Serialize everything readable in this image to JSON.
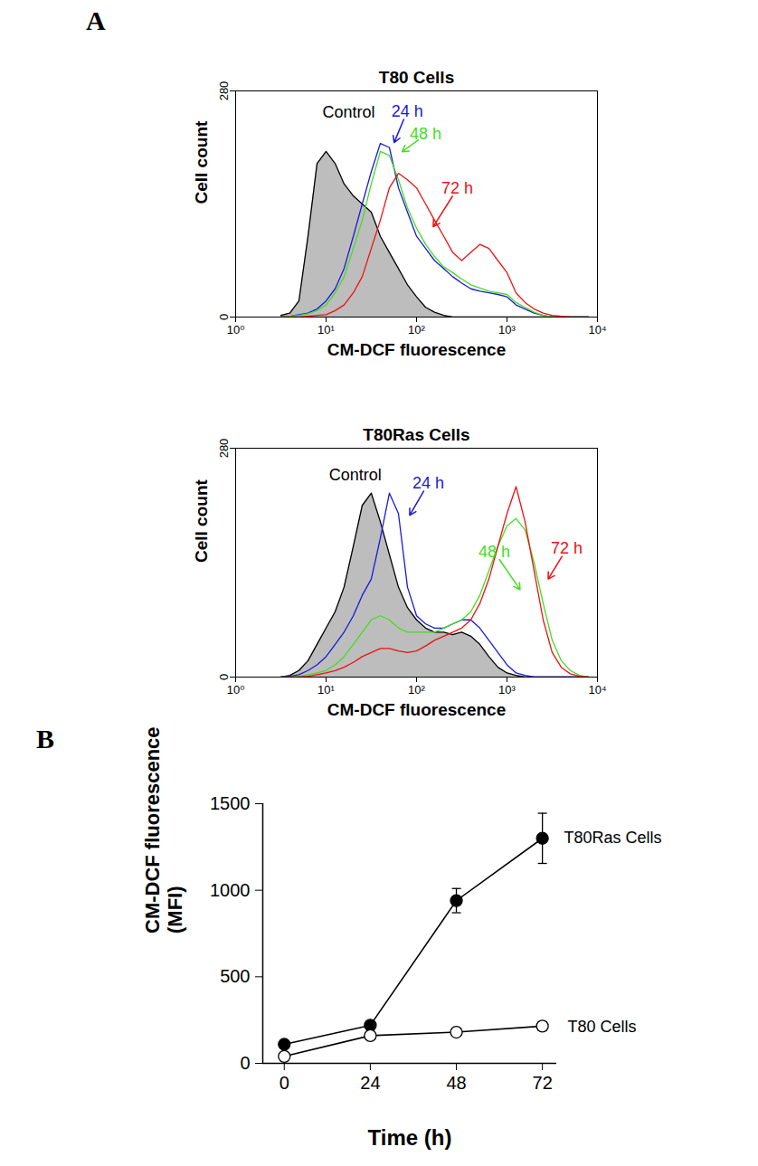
{
  "chart_data": [
    {
      "type": "line",
      "panel_label": "A",
      "title": "T80 Cells",
      "x_label": "CM-DCF fluorescence",
      "y_label": "Cell count",
      "log": "x",
      "grid": false,
      "x": [
        3.16,
        3.98,
        5.01,
        6.31,
        7.94,
        10,
        12.6,
        15.8,
        20,
        25.1,
        31.6,
        39.8,
        50.1,
        63.1,
        79.4,
        100,
        126,
        158,
        200,
        251,
        316,
        398,
        501,
        631,
        794,
        1000,
        1259,
        1585,
        1995,
        2512,
        3162,
        3981,
        5012,
        6310,
        7943
      ],
      "xlim": [
        1,
        10000
      ],
      "xticks": [
        {
          "value": 1,
          "label": "10⁰"
        },
        {
          "value": 10,
          "label": "10¹"
        },
        {
          "value": 100,
          "label": "10²"
        },
        {
          "value": 1000,
          "label": "10³"
        },
        {
          "value": 10000,
          "label": "10⁴"
        }
      ],
      "ylim": [
        0,
        280
      ],
      "yticks": [
        0,
        280
      ],
      "series": [
        {
          "name": "Control",
          "type": "area",
          "color": "#000000",
          "values": [
            2,
            5,
            20,
            100,
            190,
            205,
            190,
            165,
            150,
            140,
            130,
            100,
            80,
            60,
            40,
            25,
            12,
            6,
            2,
            0,
            0,
            0,
            0,
            0,
            0,
            0,
            0,
            0,
            0,
            0,
            0,
            0,
            0,
            0,
            0
          ]
        },
        {
          "name": "24 h",
          "color": "#1a1adb",
          "values": [
            0,
            1,
            3,
            5,
            10,
            20,
            35,
            60,
            100,
            140,
            180,
            215,
            210,
            160,
            130,
            100,
            85,
            70,
            60,
            50,
            42,
            35,
            32,
            30,
            28,
            25,
            15,
            10,
            5,
            2,
            0,
            0,
            0,
            0,
            0
          ]
        },
        {
          "name": "48 h",
          "color": "#44dd22",
          "values": [
            0,
            1,
            2,
            4,
            8,
            15,
            30,
            50,
            85,
            120,
            165,
            205,
            200,
            170,
            135,
            110,
            90,
            75,
            62,
            55,
            47,
            40,
            36,
            32,
            30,
            28,
            18,
            12,
            6,
            2,
            0,
            0,
            0,
            0,
            0
          ]
        },
        {
          "name": "72 h",
          "color": "#ee1111",
          "values": [
            0,
            0,
            0,
            1,
            2,
            3,
            8,
            15,
            30,
            50,
            85,
            120,
            160,
            178,
            170,
            160,
            140,
            120,
            100,
            80,
            70,
            80,
            90,
            85,
            70,
            55,
            30,
            18,
            10,
            5,
            2,
            1,
            0,
            0,
            0
          ]
        }
      ],
      "annotations": [
        {
          "text": "Control",
          "x": 17.8,
          "y": 253,
          "color": "#000000"
        },
        {
          "text": "24 h",
          "x": 79,
          "y": 255,
          "color": "#1a1adb",
          "arrow_to": [
            56,
            215
          ]
        },
        {
          "text": "48 h",
          "x": 126,
          "y": 226,
          "color": "#44dd22",
          "arrow_to": [
            68,
            204
          ]
        },
        {
          "text": "72 h",
          "x": 282,
          "y": 159,
          "color": "#ee1111",
          "arrow_to": [
            151,
            111
          ]
        }
      ]
    },
    {
      "type": "line",
      "title": "T80Ras Cells",
      "x_label": "CM-DCF fluorescence",
      "y_label": "Cell count",
      "log": "x",
      "grid": false,
      "x": [
        3.16,
        3.98,
        5.01,
        6.31,
        7.94,
        10,
        12.6,
        15.8,
        20,
        25.1,
        31.6,
        39.8,
        50.1,
        63.1,
        79.4,
        100,
        126,
        158,
        200,
        251,
        316,
        398,
        501,
        631,
        794,
        1000,
        1259,
        1585,
        1995,
        2512,
        3162,
        3981,
        5012,
        6310,
        7943
      ],
      "xlim": [
        1,
        10000
      ],
      "xticks": [
        {
          "value": 1,
          "label": "10⁰"
        },
        {
          "value": 10,
          "label": "10¹"
        },
        {
          "value": 100,
          "label": "10²"
        },
        {
          "value": 1000,
          "label": "10³"
        },
        {
          "value": 10000,
          "label": "10⁴"
        }
      ],
      "ylim": [
        0,
        280
      ],
      "yticks": [
        0,
        280
      ],
      "series": [
        {
          "name": "Control",
          "type": "area",
          "color": "#000000",
          "values": [
            0,
            2,
            8,
            20,
            40,
            60,
            80,
            110,
            160,
            210,
            225,
            190,
            150,
            110,
            85,
            70,
            60,
            55,
            55,
            52,
            55,
            50,
            40,
            25,
            12,
            5,
            2,
            0,
            0,
            0,
            0,
            0,
            0,
            0,
            0
          ]
        },
        {
          "name": "24 h",
          "color": "#1a1adb",
          "values": [
            0,
            1,
            3,
            8,
            15,
            25,
            40,
            55,
            75,
            100,
            120,
            170,
            225,
            200,
            110,
            75,
            65,
            60,
            60,
            65,
            70,
            70,
            60,
            45,
            30,
            15,
            5,
            2,
            0,
            0,
            0,
            0,
            0,
            0,
            0
          ]
        },
        {
          "name": "48 h",
          "color": "#44dd22",
          "values": [
            0,
            0,
            1,
            3,
            5,
            8,
            15,
            25,
            40,
            55,
            70,
            75,
            70,
            60,
            55,
            55,
            55,
            55,
            60,
            65,
            70,
            80,
            100,
            130,
            160,
            185,
            194,
            180,
            140,
            90,
            45,
            20,
            8,
            2,
            0
          ]
        },
        {
          "name": "72 h",
          "color": "#ee1111",
          "values": [
            0,
            0,
            0,
            1,
            3,
            5,
            8,
            12,
            18,
            25,
            30,
            35,
            35,
            32,
            30,
            32,
            38,
            45,
            50,
            55,
            60,
            70,
            90,
            120,
            160,
            200,
            233,
            190,
            130,
            70,
            30,
            12,
            4,
            1,
            0
          ]
        }
      ],
      "annotations": [
        {
          "text": "Control",
          "x": 21,
          "y": 247,
          "color": "#000000"
        },
        {
          "text": "24 h",
          "x": 135,
          "y": 237,
          "color": "#1a1adb",
          "arrow_to": [
            83,
            197
          ]
        },
        {
          "text": "48 h",
          "x": 724,
          "y": 153,
          "color": "#44dd22",
          "arrow_to": [
            1413,
            106
          ]
        },
        {
          "text": "72 h",
          "x": 4571,
          "y": 157,
          "color": "#ee1111",
          "arrow_to": [
            2818,
            119
          ]
        }
      ]
    },
    {
      "type": "line",
      "panel_label": "B",
      "x_label": "Time (h)",
      "y_label": "CM-DCF fluorescence\n(MFI)",
      "grid": false,
      "x": [
        0,
        24,
        48,
        72
      ],
      "xlim": [
        -6,
        76
      ],
      "xticks": [
        0,
        24,
        48,
        72
      ],
      "ylim": [
        0,
        1500
      ],
      "yticks": [
        0,
        500,
        1000,
        1500
      ],
      "series": [
        {
          "name": "T80Ras Cells",
          "color": "#000000",
          "marker": "filled_circle",
          "values": [
            110,
            220,
            940,
            1300
          ],
          "errors": [
            15,
            20,
            70,
            145
          ]
        },
        {
          "name": "T80 Cells",
          "color": "#000000",
          "marker": "open_circle",
          "values": [
            40,
            160,
            180,
            215
          ],
          "errors": [
            10,
            15,
            20,
            25
          ]
        }
      ],
      "annotations": [
        {
          "text": "T80Ras Cells",
          "x": 78,
          "y": 1301,
          "color": "#000000"
        },
        {
          "text": "T80 Cells",
          "x": 79,
          "y": 209,
          "color": "#000000"
        }
      ]
    }
  ]
}
